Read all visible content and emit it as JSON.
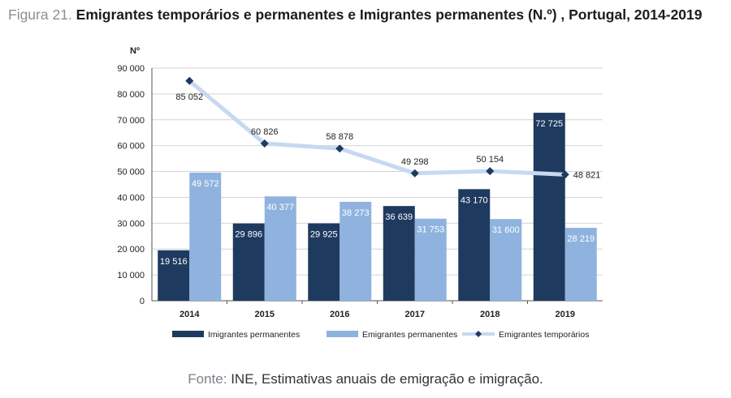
{
  "figure": {
    "number_label": "Figura 21.",
    "title": "Emigrantes temporários e permanentes e Imigrantes permanentes (N.º) , Portugal, 2014-2019"
  },
  "source": {
    "label": "Fonte:",
    "text": "INE, Estimativas anuais de emigração e imigração."
  },
  "chart_data": {
    "type": "bar",
    "title": "Emigrantes temporários e permanentes e Imigrantes permanentes (N.º) , Portugal, 2014-2019",
    "ylabel": "Nº",
    "xlabel": "",
    "ylim": [
      0,
      90000
    ],
    "yticks": [
      0,
      10000,
      20000,
      30000,
      40000,
      50000,
      60000,
      70000,
      80000,
      90000
    ],
    "ytick_labels": [
      "0",
      "10 000",
      "20 000",
      "30 000",
      "40 000",
      "50 000",
      "60 000",
      "70 000",
      "80 000",
      "90 000"
    ],
    "grid": true,
    "legend_position": "bottom",
    "categories": [
      "2014",
      "2015",
      "2016",
      "2017",
      "2018",
      "2019"
    ],
    "series": [
      {
        "name": "Imigrantes permanentes",
        "type": "bar",
        "color": "#1f3a5f",
        "values": [
          19516,
          29896,
          29925,
          36639,
          43170,
          72725
        ],
        "labels": [
          "19 516",
          "29 896",
          "29 925",
          "36 639",
          "43 170",
          "72 725"
        ]
      },
      {
        "name": "Emigrantes permanentes",
        "type": "bar",
        "color": "#8fb3de",
        "values": [
          49572,
          40377,
          38273,
          31753,
          31600,
          28219
        ],
        "labels": [
          "49 572",
          "40 377",
          "38 273",
          "31 753",
          "31 600",
          "28 219"
        ]
      },
      {
        "name": "Emigrantes temporários",
        "type": "line",
        "color": "#c6d9f1",
        "marker_color": "#1f3a5f",
        "values": [
          85052,
          60826,
          58878,
          49298,
          50154,
          48821
        ],
        "labels": [
          "85 052",
          "60 826",
          "58 878",
          "49 298",
          "50 154",
          "48 821"
        ]
      }
    ]
  }
}
